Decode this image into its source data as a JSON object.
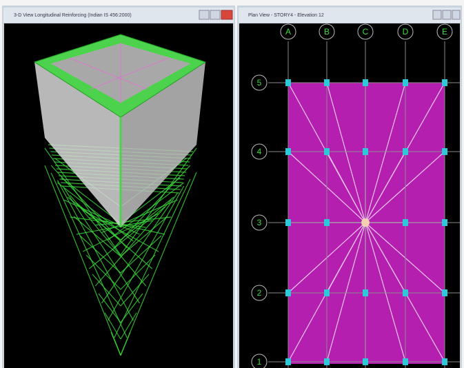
{
  "left_window": {
    "title": "3-D View  Longitudinal Reinforcing  (Indian IS 456:2000)"
  },
  "right_window": {
    "title": "Plan View - STORY4 - Elevation 12",
    "column_labels": [
      "A",
      "B",
      "C",
      "D",
      "E"
    ],
    "row_labels": [
      "5",
      "4",
      "3",
      "2",
      "1"
    ]
  }
}
